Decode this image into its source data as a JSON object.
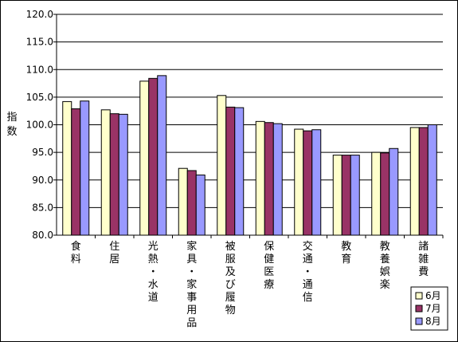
{
  "chart_data": {
    "type": "bar",
    "ylabel": "指数",
    "ylim": [
      80.0,
      120.0
    ],
    "yticks": [
      "80.0",
      "85.0",
      "90.0",
      "95.0",
      "100.0",
      "105.0",
      "110.0",
      "115.0",
      "120.0"
    ],
    "grid": true,
    "legend_position": "bottom-right",
    "categories": [
      "食料",
      "住居",
      "光熱・水道",
      "家具・家事用品",
      "被服及び履物",
      "保健医療",
      "交通・通信",
      "教育",
      "教養娯楽",
      "諸雑費"
    ],
    "series": [
      {
        "name": "6月",
        "color": "#ffffcc",
        "values": [
          104.2,
          102.7,
          107.9,
          92.1,
          105.3,
          100.6,
          99.2,
          94.5,
          95.0,
          99.5
        ]
      },
      {
        "name": "7月",
        "color": "#993366",
        "values": [
          102.9,
          102.0,
          108.4,
          91.7,
          103.2,
          100.4,
          98.9,
          94.5,
          94.9,
          99.5
        ]
      },
      {
        "name": "8月",
        "color": "#9999ff",
        "values": [
          104.3,
          101.9,
          108.9,
          90.9,
          103.1,
          100.2,
          99.1,
          94.5,
          95.7,
          100.0
        ]
      }
    ]
  }
}
